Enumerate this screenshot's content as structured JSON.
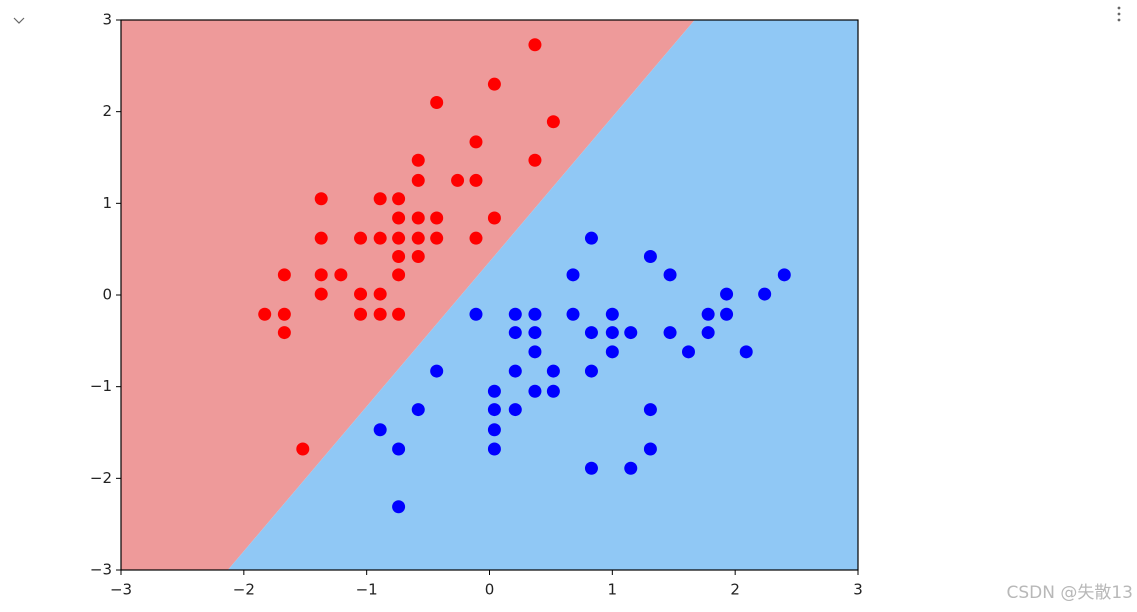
{
  "chart_data": {
    "type": "scatter",
    "xlim": [
      -3,
      3
    ],
    "ylim": [
      -3,
      3
    ],
    "xticks": [
      {
        "value": -3,
        "label": "−3"
      },
      {
        "value": -2,
        "label": "−2"
      },
      {
        "value": -1,
        "label": "−1"
      },
      0,
      1,
      2,
      3
    ],
    "yticks": [
      {
        "value": -3,
        "label": "−3"
      },
      {
        "value": -2,
        "label": "−2"
      },
      {
        "value": -1,
        "label": "−1"
      },
      0,
      1,
      2,
      3
    ],
    "decision_boundary": {
      "x": [
        -2.13,
        1.67
      ],
      "y": [
        -3,
        3
      ]
    },
    "region_colors": [
      "#ee9a9a",
      "#90c8f5"
    ],
    "series": [
      {
        "color": "#ff0000",
        "x": [
          0.37,
          0.04,
          -0.43,
          0.52,
          -0.11,
          -0.58,
          0.37,
          -0.58,
          -0.26,
          -0.11,
          -1.37,
          -0.89,
          -0.74,
          -0.74,
          -0.58,
          -0.43,
          0.04,
          -1.37,
          -1.05,
          -0.89,
          -0.74,
          -0.58,
          -0.43,
          -0.11,
          -0.74,
          -0.58,
          -1.67,
          -1.37,
          -1.21,
          -0.74,
          -1.37,
          -1.05,
          -0.89,
          -1.83,
          -1.67,
          -1.05,
          -0.89,
          -0.74,
          -1.67,
          -1.52
        ],
        "values": [
          2.73,
          2.3,
          2.1,
          1.89,
          1.67,
          1.47,
          1.47,
          1.25,
          1.25,
          1.25,
          1.05,
          1.05,
          1.05,
          0.84,
          0.84,
          0.84,
          0.84,
          0.62,
          0.62,
          0.62,
          0.62,
          0.62,
          0.62,
          0.62,
          0.42,
          0.42,
          0.22,
          0.22,
          0.22,
          0.22,
          0.01,
          0.01,
          0.01,
          -0.21,
          -0.21,
          -0.21,
          -0.21,
          -0.21,
          -0.41,
          -1.68
        ]
      },
      {
        "color": "#0000ff",
        "x": [
          0.83,
          1.31,
          0.68,
          1.47,
          2.4,
          1.93,
          2.24,
          -0.11,
          0.21,
          0.37,
          0.68,
          1.0,
          1.78,
          1.93,
          0.21,
          0.37,
          0.83,
          1.0,
          1.15,
          1.47,
          1.78,
          0.37,
          1.0,
          1.62,
          2.09,
          -0.43,
          0.21,
          0.52,
          0.83,
          0.04,
          0.37,
          0.52,
          -0.58,
          0.04,
          0.21,
          1.31,
          0.04,
          -0.89,
          -0.74,
          0.04,
          1.31,
          0.83,
          1.15,
          -0.74
        ],
        "values": [
          0.62,
          0.42,
          0.22,
          0.22,
          0.22,
          0.01,
          0.01,
          -0.21,
          -0.21,
          -0.21,
          -0.21,
          -0.21,
          -0.21,
          -0.21,
          -0.41,
          -0.41,
          -0.41,
          -0.41,
          -0.41,
          -0.41,
          -0.41,
          -0.62,
          -0.62,
          -0.62,
          -0.62,
          -0.83,
          -0.83,
          -0.83,
          -0.83,
          -1.05,
          -1.05,
          -1.05,
          -1.25,
          -1.25,
          -1.25,
          -1.25,
          -1.47,
          -1.47,
          -1.68,
          -1.68,
          -1.68,
          -1.89,
          -1.89,
          -2.31
        ]
      }
    ]
  },
  "watermark": "CSDN @失散13"
}
